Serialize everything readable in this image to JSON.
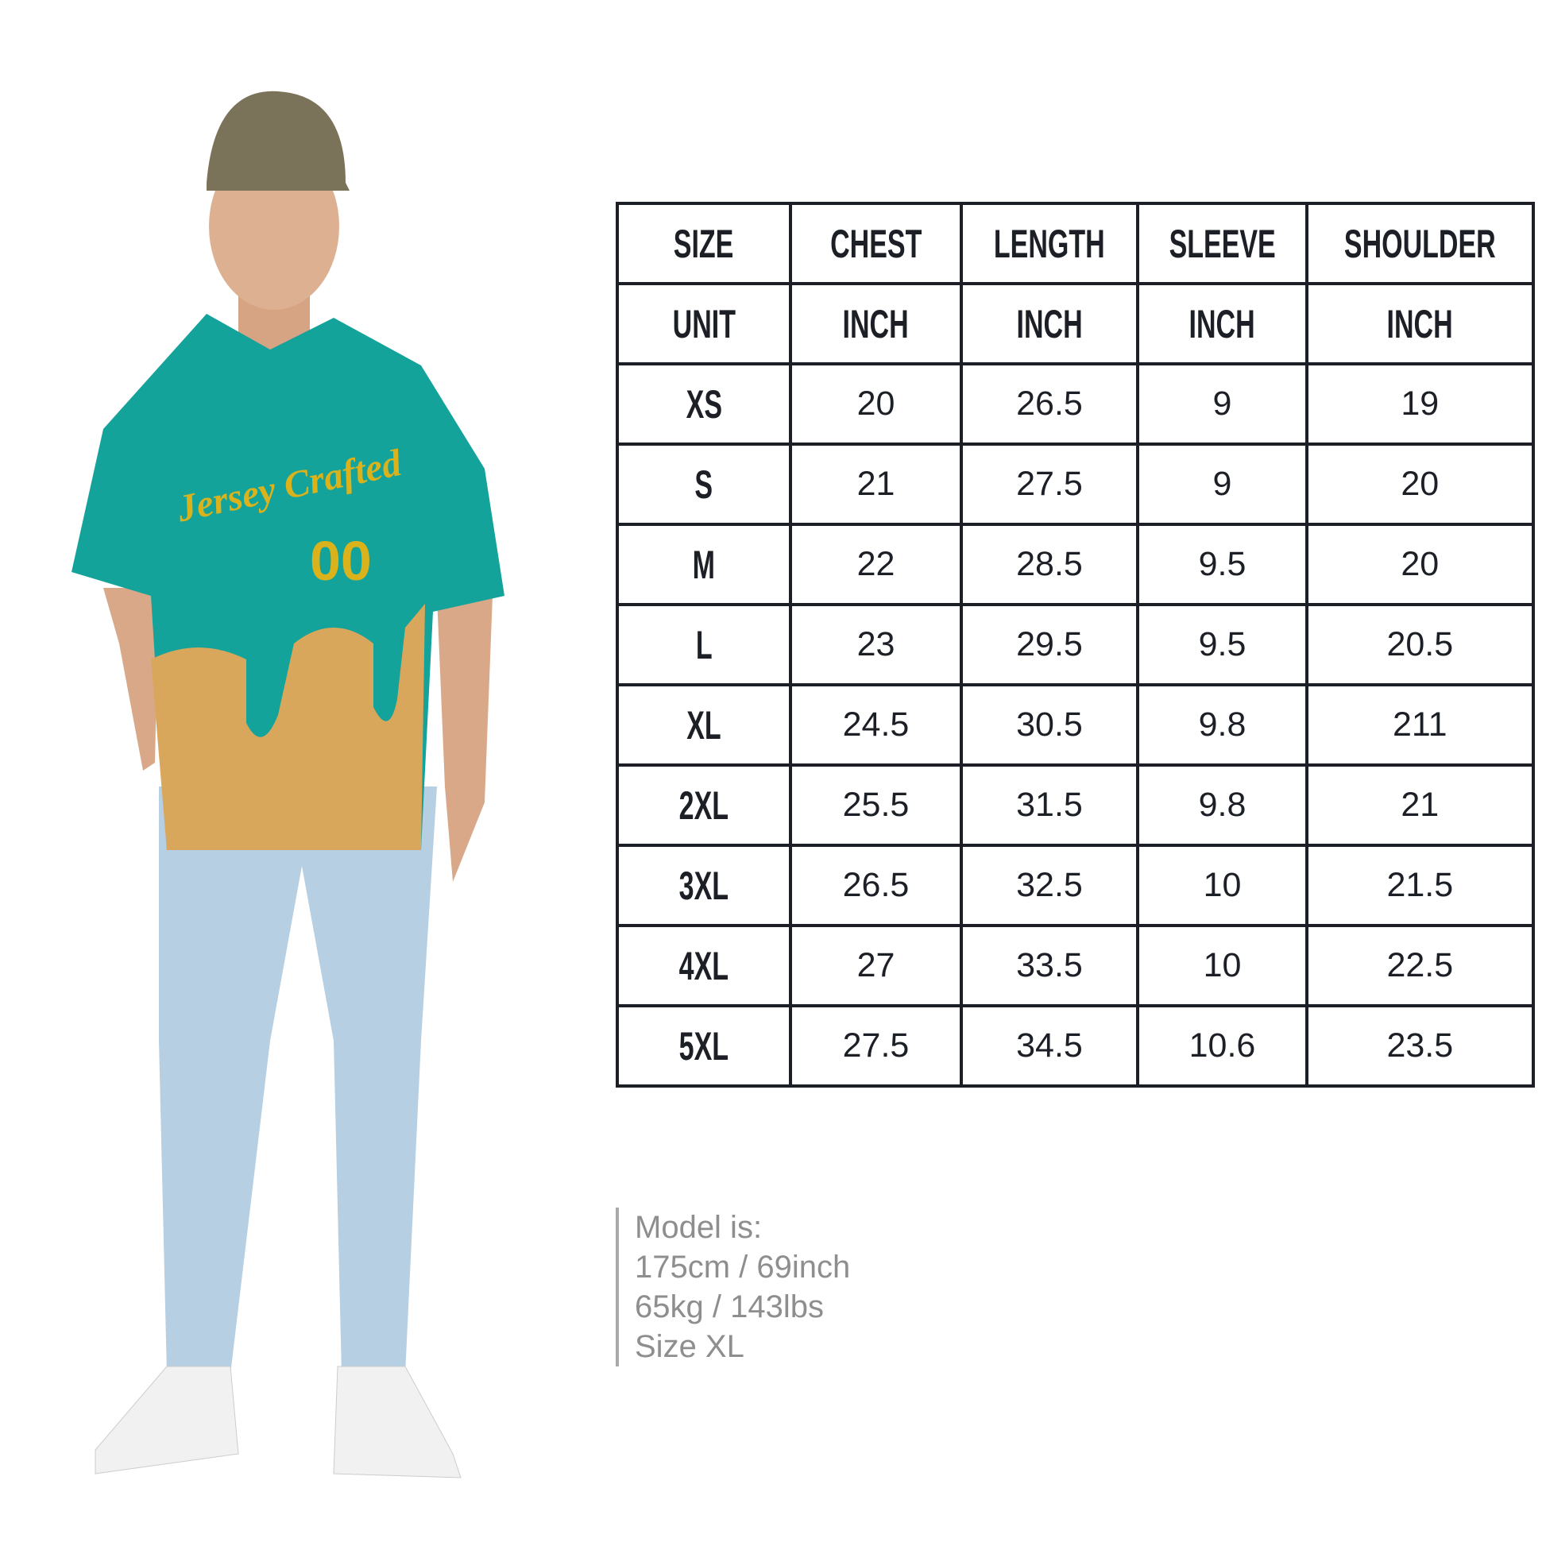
{
  "columns": [
    "SIZE",
    "CHEST",
    "LENGTH",
    "SLEEVE",
    "SHOULDER"
  ],
  "units": [
    "UNIT",
    "INCH",
    "INCH",
    "INCH",
    "INCH"
  ],
  "rows": [
    [
      "XS",
      "20",
      "26.5",
      "9",
      "19"
    ],
    [
      "S",
      "21",
      "27.5",
      "9",
      "20"
    ],
    [
      "M",
      "22",
      "28.5",
      "9.5",
      "20"
    ],
    [
      "L",
      "23",
      "29.5",
      "9.5",
      "20.5"
    ],
    [
      "XL",
      "24.5",
      "30.5",
      "9.8",
      "211"
    ],
    [
      "2XL",
      "25.5",
      "31.5",
      "9.8",
      "21"
    ],
    [
      "3XL",
      "26.5",
      "32.5",
      "10",
      "21.5"
    ],
    [
      "4XL",
      "27",
      "33.5",
      "10",
      "22.5"
    ],
    [
      "5XL",
      "27.5",
      "34.5",
      "10.6",
      "23.5"
    ]
  ],
  "model_note": {
    "title": "Model is:",
    "height": "175cm / 69inch",
    "weight": "65kg / 143lbs",
    "size": "Size XL"
  },
  "jersey": {
    "logo_text": "Jersey Crafted",
    "number": "00",
    "colors": {
      "teal": "#14a39a",
      "gold": "#d9b21c",
      "waffle": "#d9a75c",
      "jeans": "#b5cde0"
    }
  }
}
